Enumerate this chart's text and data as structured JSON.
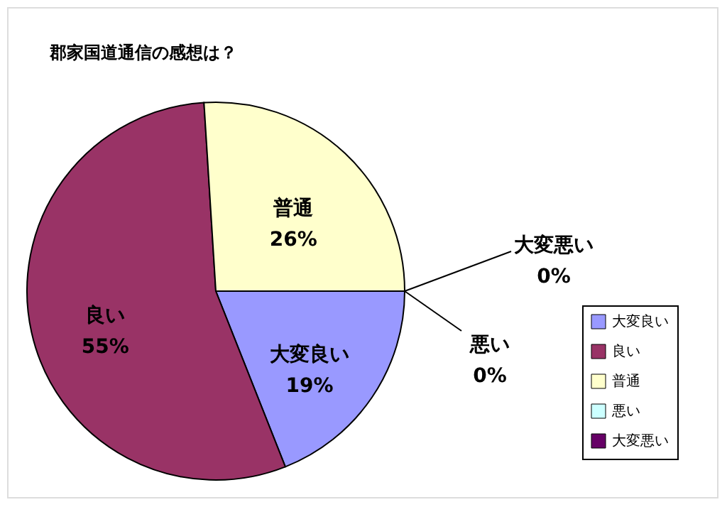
{
  "chart_data": {
    "type": "pie",
    "title": "郡家国道通信の感想は？",
    "categories": [
      "大変良い",
      "良い",
      "普通",
      "悪い",
      "大変悪い"
    ],
    "values": [
      19,
      55,
      26,
      0,
      0
    ],
    "value_labels": [
      "19%",
      "55%",
      "26%",
      "0%",
      "0%"
    ],
    "colors": [
      "#9999ff",
      "#993366",
      "#ffffcc",
      "#ccffff",
      "#660066"
    ],
    "legend": "right"
  }
}
